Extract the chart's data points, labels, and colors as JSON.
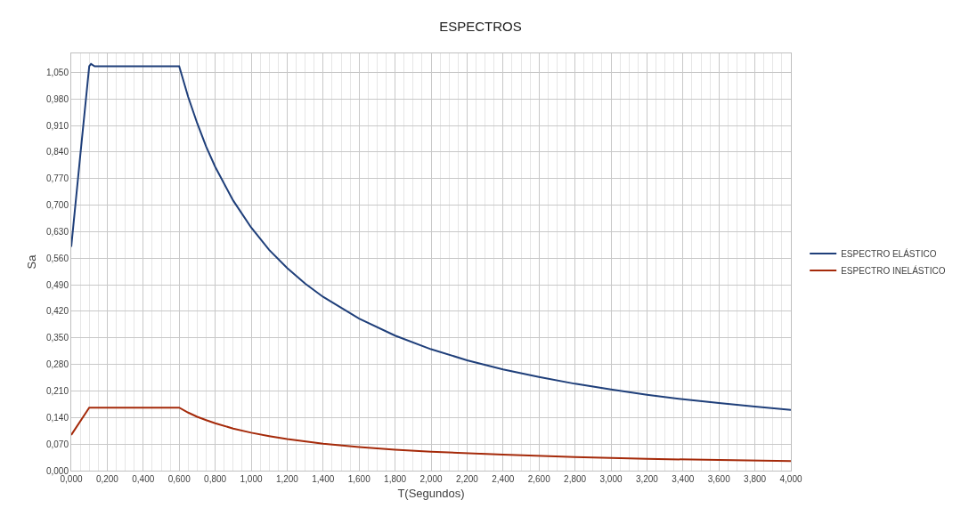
{
  "chart_data": {
    "type": "line",
    "title": "ESPECTROS",
    "xlabel": "T(Segundos)",
    "ylabel": "Sa",
    "xlim": [
      0,
      4
    ],
    "ylim": [
      0,
      1.1
    ],
    "xticks": [
      {
        "value": 0,
        "label": "0,000"
      },
      {
        "value": 0.2,
        "label": "0,200"
      },
      {
        "value": 0.4,
        "label": "0,400"
      },
      {
        "value": 0.6,
        "label": "0,600"
      },
      {
        "value": 0.8,
        "label": "0,800"
      },
      {
        "value": 1.0,
        "label": "1,000"
      },
      {
        "value": 1.2,
        "label": "1,200"
      },
      {
        "value": 1.4,
        "label": "1,400"
      },
      {
        "value": 1.6,
        "label": "1,600"
      },
      {
        "value": 1.8,
        "label": "1,800"
      },
      {
        "value": 2.0,
        "label": "2,000"
      },
      {
        "value": 2.2,
        "label": "2,200"
      },
      {
        "value": 2.4,
        "label": "2,400"
      },
      {
        "value": 2.6,
        "label": "2,600"
      },
      {
        "value": 2.8,
        "label": "2,800"
      },
      {
        "value": 3.0,
        "label": "3,000"
      },
      {
        "value": 3.2,
        "label": "3,200"
      },
      {
        "value": 3.4,
        "label": "3,400"
      },
      {
        "value": 3.6,
        "label": "3,600"
      },
      {
        "value": 3.8,
        "label": "3,800"
      },
      {
        "value": 4.0,
        "label": "4,000"
      }
    ],
    "yticks": [
      {
        "value": 0,
        "label": "0,000"
      },
      {
        "value": 0.07,
        "label": "0,070"
      },
      {
        "value": 0.14,
        "label": "0,140"
      },
      {
        "value": 0.21,
        "label": "0,210"
      },
      {
        "value": 0.28,
        "label": "0,280"
      },
      {
        "value": 0.35,
        "label": "0,350"
      },
      {
        "value": 0.42,
        "label": "0,420"
      },
      {
        "value": 0.49,
        "label": "0,490"
      },
      {
        "value": 0.56,
        "label": "0,560"
      },
      {
        "value": 0.63,
        "label": "0,630"
      },
      {
        "value": 0.7,
        "label": "0,700"
      },
      {
        "value": 0.77,
        "label": "0,770"
      },
      {
        "value": 0.84,
        "label": "0,840"
      },
      {
        "value": 0.91,
        "label": "0,910"
      },
      {
        "value": 0.98,
        "label": "0,980"
      },
      {
        "value": 1.05,
        "label": "1,050"
      }
    ],
    "grid": true,
    "legend": "right",
    "marker": "none",
    "line_style": "solid",
    "series": [
      {
        "name": "ESPECTRO ELÁSTICO",
        "color": "#1f3f7a",
        "x": [
          0,
          0.05,
          0.1,
          0.11,
          0.13,
          0.6,
          0.65,
          0.7,
          0.75,
          0.8,
          0.9,
          1.0,
          1.1,
          1.2,
          1.3,
          1.4,
          1.6,
          1.8,
          2.0,
          2.2,
          2.4,
          2.6,
          2.8,
          3.0,
          3.2,
          3.4,
          3.6,
          3.8,
          4.0
        ],
        "values": [
          0.59,
          0.83,
          1.066,
          1.072,
          1.066,
          1.066,
          0.985,
          0.916,
          0.854,
          0.801,
          0.712,
          0.641,
          0.582,
          0.534,
          0.493,
          0.458,
          0.401,
          0.356,
          0.32,
          0.291,
          0.267,
          0.247,
          0.229,
          0.214,
          0.2,
          0.188,
          0.178,
          0.169,
          0.16
        ]
      },
      {
        "name": "ESPECTRO INELÁSTICO",
        "color": "#a52a0a",
        "x": [
          0,
          0.1,
          0.6,
          0.65,
          0.7,
          0.75,
          0.8,
          0.9,
          1.0,
          1.1,
          1.2,
          1.4,
          1.6,
          1.8,
          2.0,
          2.4,
          2.8,
          3.2,
          3.6,
          4.0
        ],
        "values": [
          0.094,
          0.166,
          0.166,
          0.153,
          0.142,
          0.133,
          0.125,
          0.111,
          0.1,
          0.091,
          0.083,
          0.071,
          0.062,
          0.055,
          0.05,
          0.042,
          0.036,
          0.031,
          0.028,
          0.025
        ]
      }
    ]
  }
}
